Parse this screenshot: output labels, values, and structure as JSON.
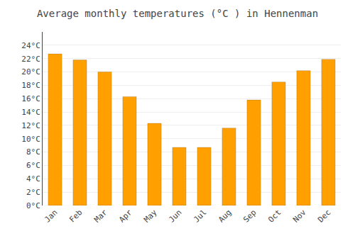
{
  "chart_data": {
    "type": "bar",
    "title": "Average monthly temperatures (°C ) in Hennenman",
    "categories": [
      "Jan",
      "Feb",
      "Mar",
      "Apr",
      "May",
      "Jun",
      "Jul",
      "Aug",
      "Sep",
      "Oct",
      "Nov",
      "Dec"
    ],
    "values": [
      22.7,
      21.8,
      20.0,
      16.3,
      12.3,
      8.7,
      8.7,
      11.6,
      15.8,
      18.5,
      20.2,
      21.9
    ],
    "color": "#FFA000",
    "ylim": [
      0,
      26
    ],
    "yticks": [
      {
        "value": 0,
        "label": "0°C"
      },
      {
        "value": 2,
        "label": "2°C"
      },
      {
        "value": 4,
        "label": "4°C"
      },
      {
        "value": 6,
        "label": "6°C"
      },
      {
        "value": 8,
        "label": "8°C"
      },
      {
        "value": 10,
        "label": "10°C"
      },
      {
        "value": 12,
        "label": "12°C"
      },
      {
        "value": 14,
        "label": "14°C"
      },
      {
        "value": 16,
        "label": "16°C"
      },
      {
        "value": 18,
        "label": "18°C"
      },
      {
        "value": 20,
        "label": "20°C"
      },
      {
        "value": 22,
        "label": "22°C"
      },
      {
        "value": 24,
        "label": "24°C"
      }
    ],
    "grid": true
  }
}
